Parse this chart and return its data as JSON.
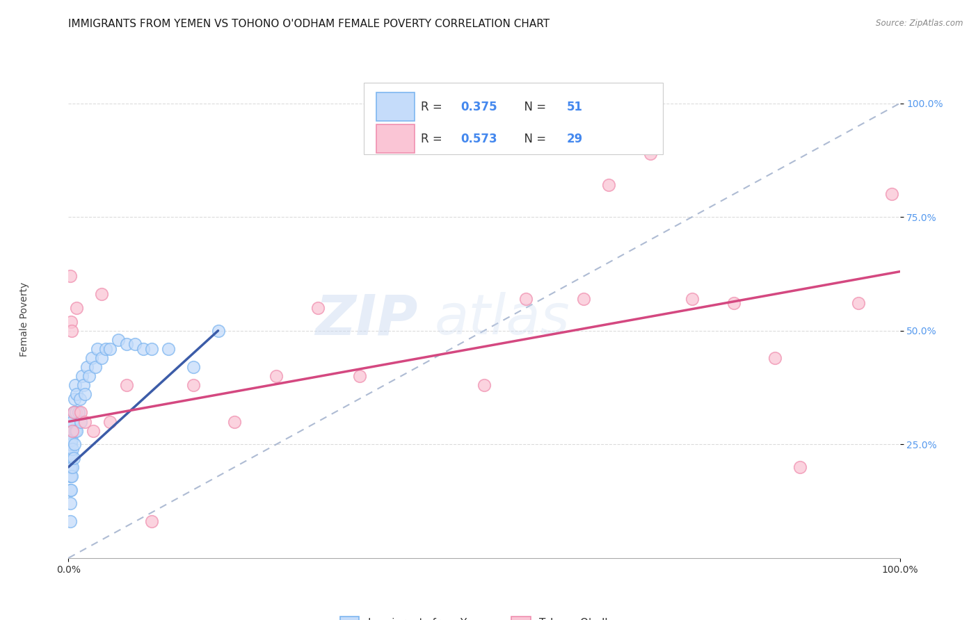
{
  "title": "IMMIGRANTS FROM YEMEN VS TOHONO O'ODHAM FEMALE POVERTY CORRELATION CHART",
  "source_text": "Source: ZipAtlas.com",
  "ylabel": "Female Poverty",
  "watermark_zip": "ZIP",
  "watermark_atlas": "atlas",
  "xlim": [
    0.0,
    1.0
  ],
  "ylim": [
    0.0,
    1.05
  ],
  "xtick_labels": [
    "0.0%",
    "100.0%"
  ],
  "ytick_labels": [
    "25.0%",
    "50.0%",
    "75.0%",
    "100.0%"
  ],
  "ytick_positions": [
    0.25,
    0.5,
    0.75,
    1.0
  ],
  "xtick_positions": [
    0.0,
    1.0
  ],
  "legend_r1": "R = 0.375",
  "legend_n1": "N = 51",
  "legend_r2": "R = 0.573",
  "legend_n2": "N = 29",
  "blue_fill": "#C5DCFA",
  "blue_edge": "#7EB6F0",
  "pink_fill": "#FAC5D5",
  "pink_edge": "#F090B0",
  "blue_line_color": "#3C5CA8",
  "pink_line_color": "#D44880",
  "dashed_line_color": "#A0B0CC",
  "title_fontsize": 11,
  "axis_label_fontsize": 10,
  "tick_fontsize": 10,
  "blue_scatter_x": [
    0.002,
    0.002,
    0.002,
    0.002,
    0.002,
    0.002,
    0.002,
    0.003,
    0.003,
    0.003,
    0.003,
    0.003,
    0.003,
    0.004,
    0.004,
    0.004,
    0.004,
    0.005,
    0.005,
    0.005,
    0.006,
    0.006,
    0.007,
    0.007,
    0.008,
    0.008,
    0.009,
    0.01,
    0.01,
    0.012,
    0.014,
    0.015,
    0.016,
    0.018,
    0.02,
    0.022,
    0.025,
    0.028,
    0.032,
    0.035,
    0.04,
    0.045,
    0.05,
    0.06,
    0.07,
    0.08,
    0.09,
    0.1,
    0.12,
    0.15,
    0.18
  ],
  "blue_scatter_y": [
    0.08,
    0.12,
    0.15,
    0.18,
    0.2,
    0.22,
    0.26,
    0.15,
    0.18,
    0.2,
    0.23,
    0.25,
    0.28,
    0.18,
    0.22,
    0.26,
    0.3,
    0.2,
    0.24,
    0.3,
    0.22,
    0.32,
    0.25,
    0.35,
    0.28,
    0.38,
    0.32,
    0.28,
    0.36,
    0.32,
    0.35,
    0.3,
    0.4,
    0.38,
    0.36,
    0.42,
    0.4,
    0.44,
    0.42,
    0.46,
    0.44,
    0.46,
    0.46,
    0.48,
    0.47,
    0.47,
    0.46,
    0.46,
    0.46,
    0.42,
    0.5
  ],
  "pink_scatter_x": [
    0.002,
    0.003,
    0.004,
    0.005,
    0.006,
    0.01,
    0.015,
    0.02,
    0.03,
    0.04,
    0.05,
    0.07,
    0.1,
    0.15,
    0.2,
    0.25,
    0.3,
    0.35,
    0.5,
    0.55,
    0.62,
    0.65,
    0.7,
    0.75,
    0.8,
    0.85,
    0.88,
    0.95,
    0.99
  ],
  "pink_scatter_y": [
    0.62,
    0.52,
    0.5,
    0.28,
    0.32,
    0.55,
    0.32,
    0.3,
    0.28,
    0.58,
    0.3,
    0.38,
    0.08,
    0.38,
    0.3,
    0.4,
    0.55,
    0.4,
    0.38,
    0.57,
    0.57,
    0.82,
    0.89,
    0.57,
    0.56,
    0.44,
    0.2,
    0.56,
    0.8
  ],
  "blue_trendline_x": [
    0.0,
    0.18
  ],
  "blue_trendline_y": [
    0.2,
    0.5
  ],
  "pink_trendline_x": [
    0.0,
    1.0
  ],
  "pink_trendline_y": [
    0.3,
    0.63
  ],
  "dashed_line_x": [
    0.0,
    1.0
  ],
  "dashed_line_y": [
    0.0,
    1.0
  ],
  "bottom_legend_labels": [
    "Immigrants from Yemen",
    "Tohono O'odham"
  ],
  "grid_color": "#CCCCCC",
  "grid_alpha": 0.7,
  "ytick_color": "#5599EE",
  "xtick_color": "#333333"
}
